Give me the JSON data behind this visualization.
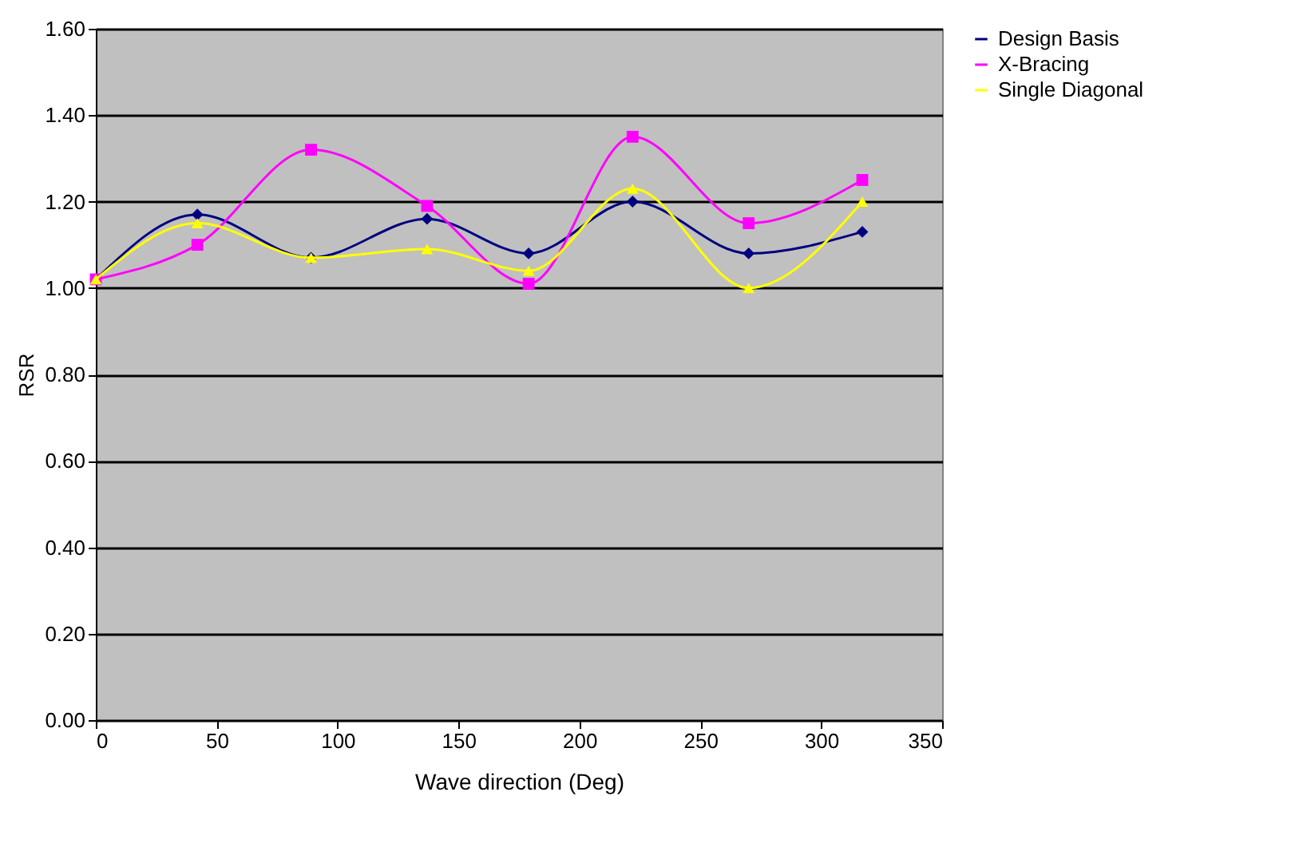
{
  "chart_data": {
    "type": "line",
    "xlabel": "Wave direction (Deg)",
    "ylabel": "RSR",
    "x": [
      0,
      42,
      89,
      137,
      179,
      222,
      270,
      317
    ],
    "xlim": [
      0,
      350
    ],
    "xticks": [
      0,
      50,
      100,
      150,
      200,
      250,
      300,
      350
    ],
    "ylim": [
      0,
      1.6
    ],
    "yticks": [
      {
        "value": 0,
        "label": "0.00"
      },
      {
        "value": 0.2,
        "label": "0.20"
      },
      {
        "value": 0.4,
        "label": "0.40"
      },
      {
        "value": 0.6,
        "label": "0.60"
      },
      {
        "value": 0.8,
        "label": "0.80"
      },
      {
        "value": 1.0,
        "label": "1.00"
      },
      {
        "value": 1.2,
        "label": "1.20"
      },
      {
        "value": 1.4,
        "label": "1.40"
      },
      {
        "value": 1.6,
        "label": "1.60"
      }
    ],
    "grid": "y",
    "legend": "right",
    "line_style": "solid",
    "series": [
      {
        "name": "Design Basis",
        "color": "#000080",
        "marker": "diamond",
        "values": [
          1.02,
          1.17,
          1.07,
          1.16,
          1.08,
          1.2,
          1.08,
          1.13
        ]
      },
      {
        "name": "X-Bracing",
        "color": "#ff00ff",
        "marker": "square",
        "values": [
          1.02,
          1.1,
          1.32,
          1.19,
          1.01,
          1.35,
          1.15,
          1.25
        ]
      },
      {
        "name": "Single Diagonal",
        "color": "#ffff00",
        "marker": "triangle",
        "values": [
          1.02,
          1.15,
          1.07,
          1.09,
          1.04,
          1.23,
          1.0,
          1.2
        ]
      }
    ]
  }
}
